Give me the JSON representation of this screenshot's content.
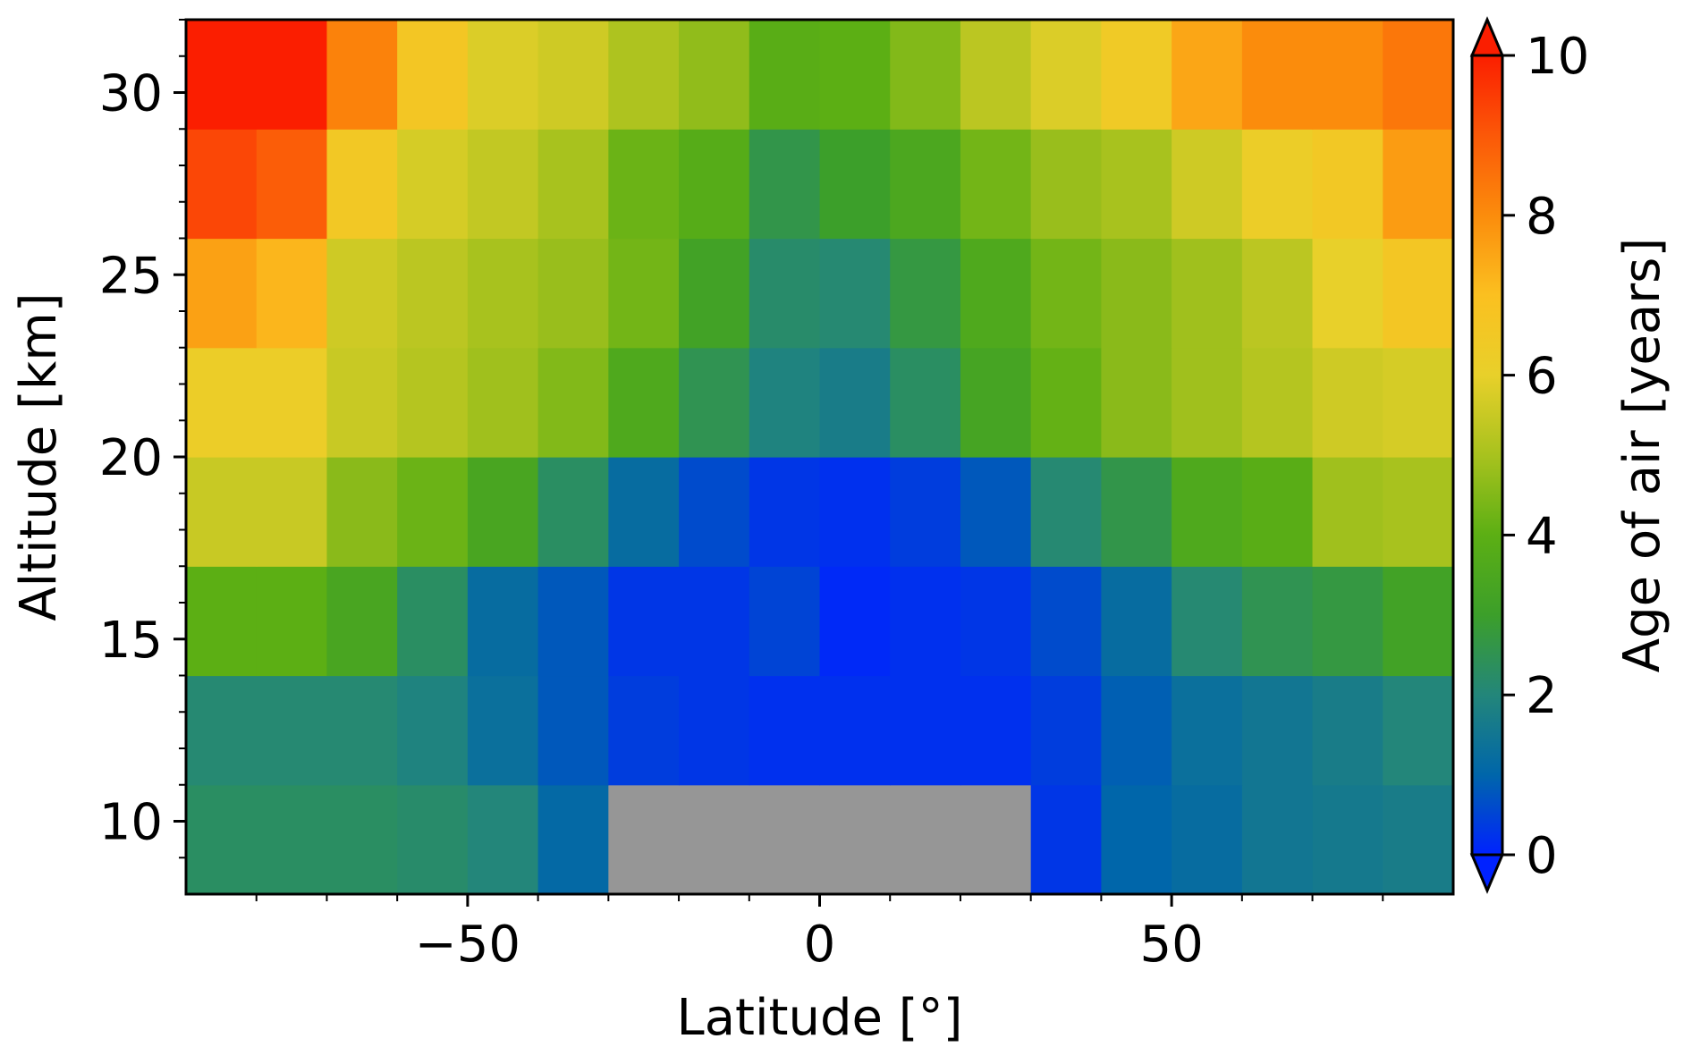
{
  "chart_data": {
    "type": "heatmap",
    "xlabel": "Latitude [°]",
    "ylabel": "Altitude [km]",
    "colorbar_label": "Age of air [years]",
    "x_edges": [
      -90,
      -80,
      -70,
      -60,
      -50,
      -40,
      -30,
      -20,
      -10,
      0,
      10,
      20,
      30,
      40,
      50,
      60,
      70,
      80,
      90
    ],
    "y_edges": [
      8,
      11,
      14,
      17,
      20,
      23,
      26,
      29,
      32
    ],
    "xlim": [
      -90,
      90
    ],
    "ylim": [
      8,
      32
    ],
    "xticks": [
      -50,
      0,
      50
    ],
    "xtick_labels": [
      "−50",
      "0",
      "50"
    ],
    "yticks": [
      10,
      15,
      20,
      25,
      30
    ],
    "ytick_labels": [
      "10",
      "15",
      "20",
      "25",
      "30"
    ],
    "colorbar_ticks": [
      0,
      2,
      4,
      6,
      8,
      10
    ],
    "colorbar_tick_labels": [
      "0",
      "2",
      "4",
      "6",
      "8",
      "10"
    ],
    "vmin": 0,
    "vmax": 10,
    "colorbar_extend": "both",
    "missing_color": "#969696",
    "colormap": [
      {
        "v": 0,
        "color": "#0022ff"
      },
      {
        "v": 1,
        "color": "#0066aa"
      },
      {
        "v": 2,
        "color": "#23867a"
      },
      {
        "v": 3,
        "color": "#3c9f2a"
      },
      {
        "v": 4,
        "color": "#5caf14"
      },
      {
        "v": 5,
        "color": "#a8c21e"
      },
      {
        "v": 6,
        "color": "#e8d02a"
      },
      {
        "v": 7,
        "color": "#fbc020"
      },
      {
        "v": 8,
        "color": "#fb8c0c"
      },
      {
        "v": 9,
        "color": "#fb5808"
      },
      {
        "v": 10,
        "color": "#fb1e00"
      }
    ],
    "values": [
      [
        2.3,
        2.3,
        2.3,
        2.2,
        2.0,
        1.1,
        null,
        null,
        null,
        null,
        null,
        null,
        0.3,
        1.0,
        1.2,
        1.5,
        1.6,
        1.7
      ],
      [
        2.1,
        2.1,
        2.1,
        1.9,
        1.3,
        0.8,
        0.4,
        0.3,
        0.2,
        0.2,
        0.2,
        0.2,
        0.4,
        0.9,
        1.3,
        1.5,
        1.7,
        2.0
      ],
      [
        4.0,
        4.0,
        3.4,
        2.3,
        1.2,
        0.8,
        0.3,
        0.3,
        0.5,
        0.1,
        0.2,
        0.3,
        0.6,
        1.2,
        2.1,
        2.5,
        2.7,
        3.2
      ],
      [
        5.5,
        5.5,
        4.6,
        4.2,
        3.4,
        2.3,
        1.2,
        0.6,
        0.3,
        0.2,
        0.4,
        0.8,
        2.1,
        2.6,
        3.6,
        3.9,
        4.9,
        5.0
      ],
      [
        6.2,
        6.2,
        5.5,
        5.2,
        4.9,
        4.5,
        3.6,
        2.5,
        1.9,
        1.7,
        2.3,
        3.3,
        4.1,
        4.6,
        4.9,
        5.2,
        5.6,
        5.7
      ],
      [
        7.6,
        7.2,
        5.6,
        5.3,
        5.0,
        4.8,
        4.3,
        3.2,
        2.2,
        2.1,
        2.7,
        3.6,
        4.3,
        4.6,
        4.9,
        5.3,
        6.0,
        6.6
      ],
      [
        9.3,
        8.9,
        6.5,
        5.7,
        5.4,
        5.0,
        4.2,
        3.8,
        2.6,
        3.0,
        3.5,
        4.3,
        4.8,
        5.0,
        5.6,
        6.2,
        6.5,
        7.7
      ],
      [
        10.0,
        10.0,
        8.2,
        6.6,
        5.8,
        5.6,
        5.1,
        4.7,
        3.9,
        4.0,
        4.5,
        5.3,
        5.8,
        6.4,
        7.5,
        8.0,
        8.0,
        8.4
      ]
    ]
  }
}
